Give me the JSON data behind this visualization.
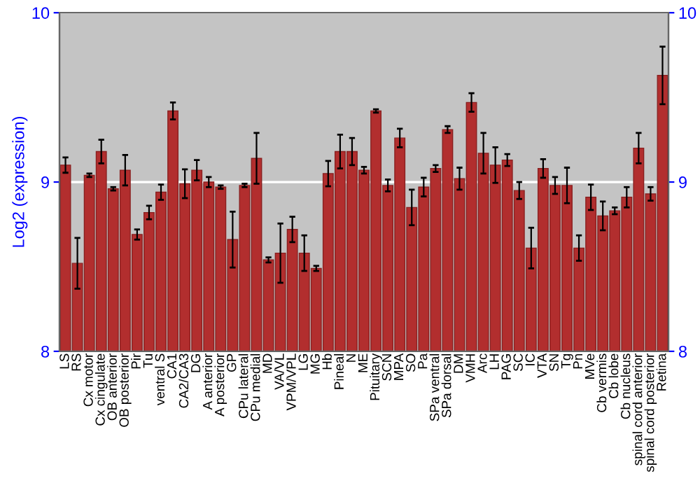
{
  "chart_data": {
    "type": "bar",
    "ylabel": "Log2 (expression)",
    "categories": [
      "LS",
      "RS",
      "Cx motor",
      "Cx cingulate",
      "OB anterior",
      "OB posterior",
      "Pir",
      "Tu",
      "ventral S",
      "CA1",
      "CA2/CA3",
      "DG",
      "A anterior",
      "A posterior",
      "GP",
      "CPu lateral",
      "CPu medial",
      "MD",
      "VA/VL",
      "VPM/VPL",
      "LG",
      "MG",
      "Hb",
      "Pineal",
      "N",
      "ME",
      "Pituitary",
      "SCN",
      "MPA",
      "SO",
      "Pa",
      "SPa ventral",
      "SPa dorsal",
      "DM",
      "VMH",
      "Arc",
      "LH",
      "PAG",
      "SC",
      "IC",
      "VTA",
      "SN",
      "Tg",
      "Pn",
      "MVe",
      "Cb vermis",
      "Cb lobe",
      "Cb nucleus",
      "spinal cord anterior",
      "spinal cord posterior",
      "Retina"
    ],
    "series": [
      {
        "color": "#b22e2e",
        "values": [
          9.1,
          8.52,
          9.04,
          9.18,
          8.96,
          9.07,
          8.69,
          8.82,
          8.94,
          9.42,
          8.99,
          9.07,
          9.0,
          8.97,
          8.66,
          8.98,
          9.14,
          8.54,
          8.58,
          8.72,
          8.58,
          8.49,
          9.05,
          9.18,
          9.18,
          9.07,
          9.42,
          8.98,
          9.26,
          8.85,
          8.97,
          9.08,
          9.31,
          9.02,
          9.47,
          9.17,
          9.1,
          9.13,
          8.95,
          8.61,
          9.08,
          8.98,
          8.98,
          8.61,
          8.91,
          8.8,
          8.83,
          8.91,
          9.2,
          8.93,
          9.63
        ],
        "errors": [
          0.045,
          0.15,
          0.01,
          0.07,
          0.01,
          0.09,
          0.03,
          0.04,
          0.045,
          0.05,
          0.085,
          0.06,
          0.03,
          0.01,
          0.165,
          0.01,
          0.15,
          0.015,
          0.175,
          0.075,
          0.105,
          0.015,
          0.075,
          0.1,
          0.08,
          0.02,
          0.01,
          0.035,
          0.055,
          0.105,
          0.055,
          0.02,
          0.02,
          0.065,
          0.055,
          0.12,
          0.105,
          0.035,
          0.05,
          0.12,
          0.055,
          0.05,
          0.105,
          0.075,
          0.075,
          0.085,
          0.02,
          0.06,
          0.09,
          0.04,
          0.17
        ]
      }
    ],
    "ylim": [
      8,
      10
    ],
    "yticks": [
      8,
      9,
      10
    ],
    "y2lim": [
      8,
      10
    ],
    "y2ticks": [
      8,
      9,
      10
    ],
    "grid": "y"
  }
}
